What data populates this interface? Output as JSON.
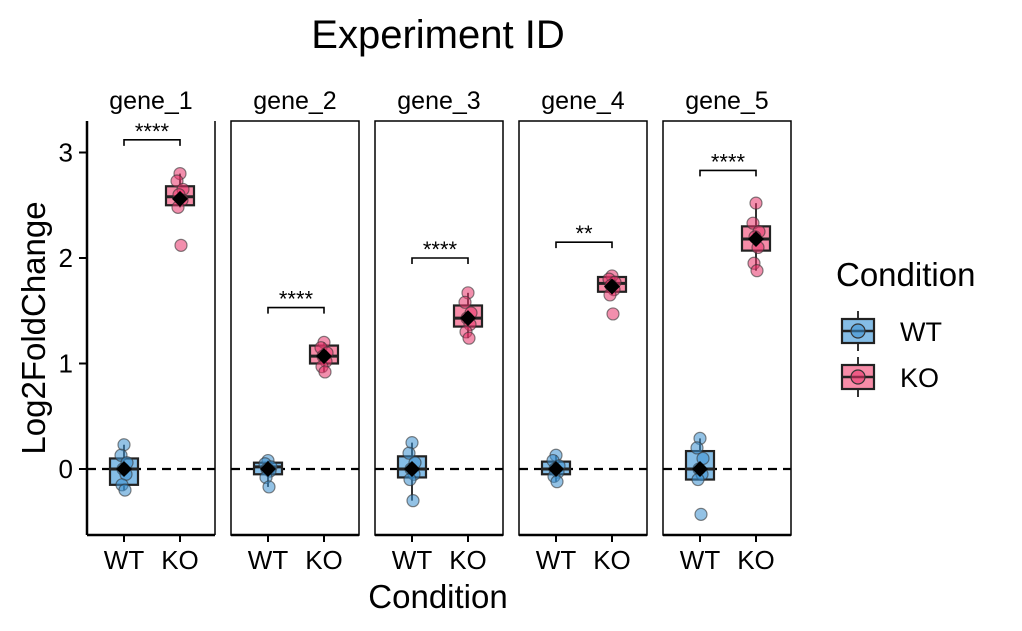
{
  "chart_data": {
    "type": "boxplot",
    "title": "Experiment ID",
    "xlabel": "Condition",
    "ylabel": "Log2FoldChange",
    "ylim": [
      -0.62,
      3.3
    ],
    "yticks": [
      0,
      1,
      2,
      3
    ],
    "categories": [
      "WT",
      "KO"
    ],
    "reference_line": 0,
    "legend": {
      "title": "Condition",
      "position": "right",
      "entries": [
        {
          "label": "WT",
          "fill": "#85bde6",
          "point": "#3a8fd0"
        },
        {
          "label": "KO",
          "fill": "#f78ca8",
          "point": "#e8336a"
        }
      ]
    },
    "colors": {
      "WT": "#85bde6",
      "KO": "#f78ca8",
      "WT_point": "#3a8fd0",
      "KO_point": "#e8336a",
      "mean": "#000000"
    },
    "panels": [
      {
        "name": "gene_1",
        "significance": "****",
        "bracket_y": 3.12,
        "groups": [
          {
            "condition": "WT",
            "points": [
              0.23,
              0.13,
              0.06,
              0.0,
              -0.05,
              -0.15,
              -0.2
            ],
            "box": {
              "min": -0.2,
              "q1": -0.15,
              "median": 0.0,
              "q3": 0.1,
              "max": 0.23
            },
            "mean": 0.0
          },
          {
            "condition": "KO",
            "points": [
              2.8,
              2.73,
              2.65,
              2.6,
              2.55,
              2.48,
              2.12
            ],
            "box": {
              "min": 2.48,
              "q1": 2.5,
              "median": 2.58,
              "q3": 2.68,
              "max": 2.8
            },
            "mean": 2.56
          }
        ]
      },
      {
        "name": "gene_2",
        "significance": "****",
        "bracket_y": 1.53,
        "groups": [
          {
            "condition": "WT",
            "points": [
              0.08,
              0.05,
              0.02,
              0.0,
              -0.02,
              -0.08,
              -0.17
            ],
            "box": {
              "min": -0.17,
              "q1": -0.05,
              "median": 0.02,
              "q3": 0.06,
              "max": 0.08
            },
            "mean": 0.0
          },
          {
            "condition": "KO",
            "points": [
              1.2,
              1.15,
              1.1,
              1.07,
              1.02,
              0.97,
              0.92
            ],
            "box": {
              "min": 0.92,
              "q1": 1.0,
              "median": 1.07,
              "q3": 1.17,
              "max": 1.2
            },
            "mean": 1.07
          }
        ]
      },
      {
        "name": "gene_3",
        "significance": "****",
        "bracket_y": 2.0,
        "groups": [
          {
            "condition": "WT",
            "points": [
              0.25,
              0.15,
              0.06,
              0.0,
              -0.05,
              -0.1,
              -0.3
            ],
            "box": {
              "min": -0.3,
              "q1": -0.08,
              "median": 0.0,
              "q3": 0.12,
              "max": 0.25
            },
            "mean": 0.0
          },
          {
            "condition": "KO",
            "points": [
              1.67,
              1.58,
              1.48,
              1.43,
              1.37,
              1.3,
              1.24
            ],
            "box": {
              "min": 1.24,
              "q1": 1.35,
              "median": 1.43,
              "q3": 1.55,
              "max": 1.67
            },
            "mean": 1.43
          }
        ]
      },
      {
        "name": "gene_4",
        "significance": "**",
        "bracket_y": 2.15,
        "groups": [
          {
            "condition": "WT",
            "points": [
              0.13,
              0.08,
              0.03,
              0.0,
              -0.03,
              -0.07,
              -0.12
            ],
            "box": {
              "min": -0.12,
              "q1": -0.05,
              "median": 0.0,
              "q3": 0.07,
              "max": 0.13
            },
            "mean": 0.0
          },
          {
            "condition": "KO",
            "points": [
              1.83,
              1.8,
              1.77,
              1.74,
              1.7,
              1.65,
              1.47
            ],
            "box": {
              "min": 1.65,
              "q1": 1.68,
              "median": 1.76,
              "q3": 1.82,
              "max": 1.83
            },
            "mean": 1.73
          }
        ]
      },
      {
        "name": "gene_5",
        "significance": "****",
        "bracket_y": 2.83,
        "groups": [
          {
            "condition": "WT",
            "points": [
              0.29,
              0.2,
              0.1,
              0.0,
              -0.05,
              -0.1,
              -0.43
            ],
            "box": {
              "min": -0.1,
              "q1": -0.1,
              "median": 0.0,
              "q3": 0.17,
              "max": 0.29
            },
            "mean": 0.0
          },
          {
            "condition": "KO",
            "points": [
              2.52,
              2.33,
              2.25,
              2.2,
              2.1,
              1.95,
              1.88
            ],
            "box": {
              "min": 1.88,
              "q1": 2.07,
              "median": 2.18,
              "q3": 2.3,
              "max": 2.52
            },
            "mean": 2.18
          }
        ]
      }
    ]
  }
}
